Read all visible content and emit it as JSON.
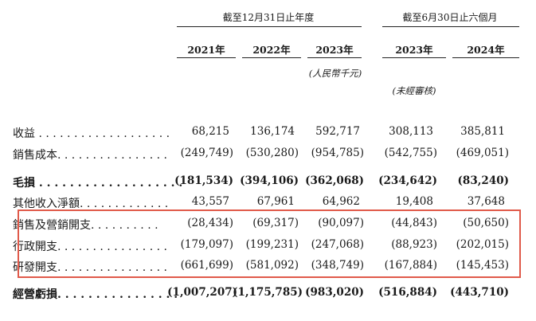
{
  "header": {
    "group_annual": "截至12月31日止年度",
    "group_six_months": "截至6月30日止六個月",
    "years": [
      "2021年",
      "2022年",
      "2023年",
      "2023年",
      "2024年"
    ],
    "unit_note": "(人民幣千元)",
    "unaudited_note": "(未經審核)"
  },
  "rows": [
    {
      "label": "收益 . . . . . . . . . . . . . . . . . . .",
      "bold": false,
      "values": [
        "68,215",
        "136,174",
        "592,717",
        "308,113",
        "385,811"
      ]
    },
    {
      "label": "銷售成本. . . . . . . . . . . . . . . .",
      "bold": false,
      "values": [
        "(249,749)",
        "(530,280)",
        "(954,785)",
        "(542,755)",
        "(469,051)"
      ]
    },
    {
      "label": "毛損 . . . . . . . . . . . . . . . . . . .",
      "bold": true,
      "values": [
        "(181,534)",
        "(394,106)",
        "(362,068)",
        "(234,642)",
        "(83,240)"
      ]
    },
    {
      "label": "其他收入淨額. . . . . . . . . . . . .",
      "bold": false,
      "values": [
        "43,557",
        "67,961",
        "64,962",
        "19,408",
        "37,648"
      ]
    },
    {
      "label": "銷售及營銷開支. . . . . . . . . .",
      "bold": false,
      "values": [
        "(28,434)",
        "(69,317)",
        "(90,097)",
        "(44,843)",
        "(50,650)"
      ]
    },
    {
      "label": "行政開支. . . . . . . . . . . . . . . .",
      "bold": false,
      "values": [
        "(179,097)",
        "(199,231)",
        "(247,068)",
        "(88,923)",
        "(202,015)"
      ]
    },
    {
      "label": "研發開支. . . . . . . . . . . . . . . .",
      "bold": false,
      "values": [
        "(661,699)",
        "(581,092)",
        "(348,749)",
        "(167,884)",
        "(145,453)"
      ]
    },
    {
      "label": "經營虧損. . . . . . . . . . . . . . . .",
      "bold": true,
      "values": [
        "(1,007,207)",
        "(1,175,785)",
        "(983,020)",
        "(516,884)",
        "(443,710)"
      ]
    }
  ],
  "colors": {
    "highlight_border": "#e05a4a",
    "text": "#1a1a1a"
  }
}
